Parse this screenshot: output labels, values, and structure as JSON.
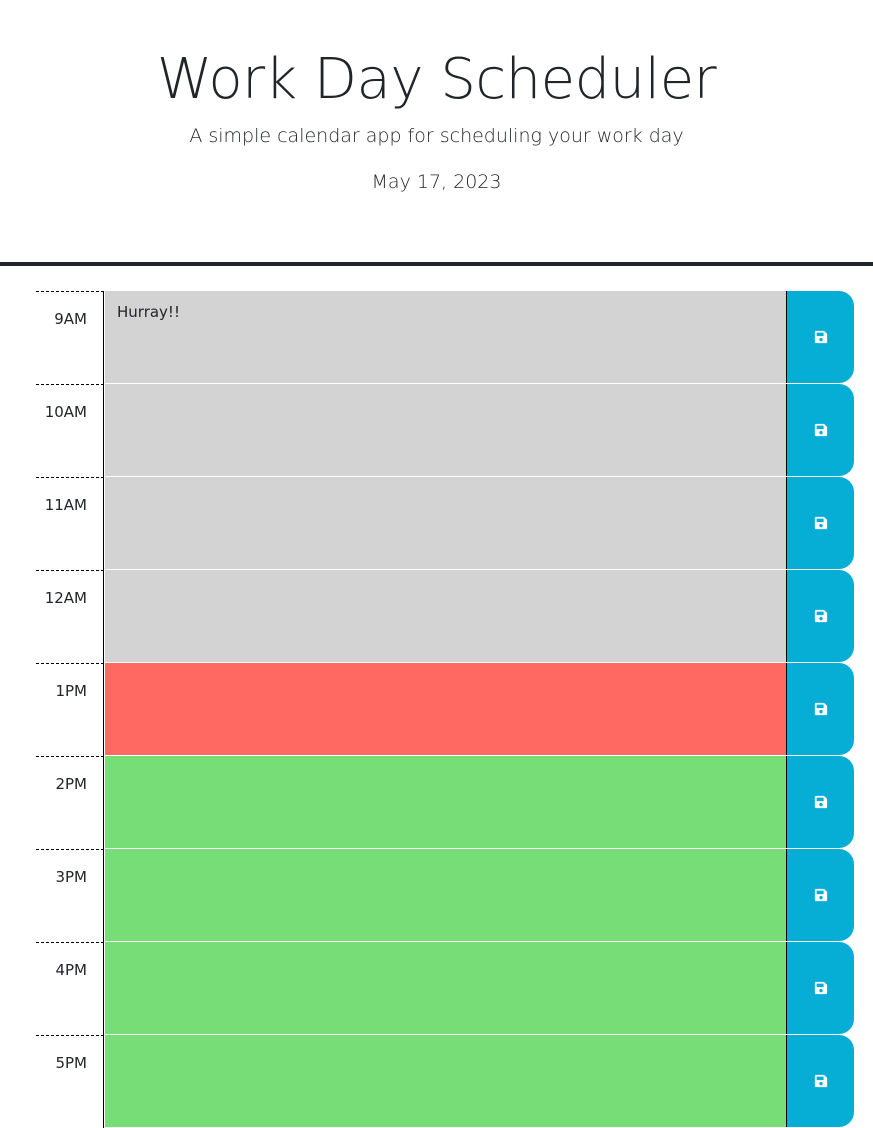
{
  "header": {
    "title": "Work Day Scheduler",
    "subtitle": "A simple calendar app for scheduling your work day",
    "date": "May 17, 2023"
  },
  "colors": {
    "past": "#d3d3d3",
    "present": "#ff6961",
    "future": "#77dd77",
    "save_button": "#06aed5"
  },
  "save_icon": "floppy-disk-icon",
  "hours": [
    {
      "label": "9AM",
      "text": "Hurray!!",
      "state": "past"
    },
    {
      "label": "10AM",
      "text": "",
      "state": "past"
    },
    {
      "label": "11AM",
      "text": "",
      "state": "past"
    },
    {
      "label": "12AM",
      "text": "",
      "state": "past"
    },
    {
      "label": "1PM",
      "text": "",
      "state": "present"
    },
    {
      "label": "2PM",
      "text": "",
      "state": "future"
    },
    {
      "label": "3PM",
      "text": "",
      "state": "future"
    },
    {
      "label": "4PM",
      "text": "",
      "state": "future"
    },
    {
      "label": "5PM",
      "text": "",
      "state": "future"
    }
  ]
}
